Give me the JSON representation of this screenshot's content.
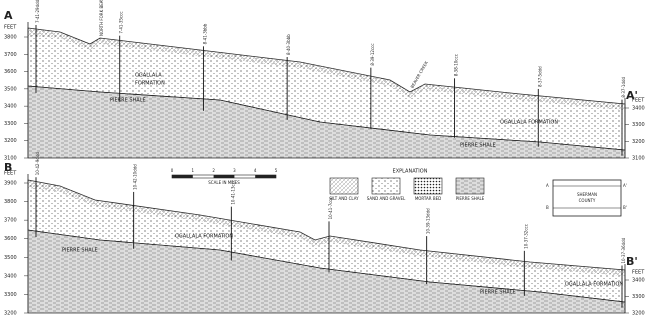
{
  "section_a": {
    "label_left": "A",
    "label_right": "A'",
    "left_axis": {
      "unit": "FEET",
      "ticks": [
        "3800",
        "3700",
        "3600",
        "3500",
        "3400",
        "3300",
        "3200",
        "3100"
      ]
    },
    "right_axis": {
      "unit": "FEET",
      "ticks": [
        "3400",
        "3300",
        "3200",
        "3100"
      ]
    },
    "wells": [
      "7-41-29ddd",
      "7-41-35ccc",
      "8-41-3bbb",
      "8-40-3bbb",
      "8-39-12ccc",
      "8-38-10ccc",
      "8-37-5ddd",
      "8-37-1ddd"
    ],
    "streams": [
      "NORTH FORK BEAVER CREEK",
      "BEAVER CREEK"
    ],
    "units": [
      "OGALLALA",
      "FORMATION",
      "PIERRE SHALE",
      "OGALLALA FORMATION",
      "PIERRE SHALE"
    ]
  },
  "section_b": {
    "label_left": "B",
    "label_right": "B'",
    "left_axis": {
      "unit": "FEET",
      "ticks": [
        "3900",
        "3800",
        "3700",
        "3600",
        "3500",
        "3400",
        "3300",
        "3200"
      ]
    },
    "right_axis": {
      "unit": "FEET",
      "ticks": [
        "3400",
        "3300",
        "3200"
      ]
    },
    "wells": [
      "10-42-9ddd",
      "10-42-10ddd",
      "10-41-13ccc",
      "10-41-7ccc",
      "10-39-13ddd",
      "10-37-32ccc",
      "10-37-36ddd"
    ],
    "units": [
      "OGALLALA FORMATION",
      "PIERRE SHALE",
      "PIERRE SHALE",
      "OGALLALA FORMATION"
    ]
  },
  "scale": {
    "ticks": [
      "0",
      "1",
      "2",
      "3",
      "4",
      "5"
    ],
    "label": "SCALE IN MILES"
  },
  "explanation": {
    "title": "EXPLANATION",
    "items": [
      "SILT AND CLAY",
      "SAND AND GRAVEL",
      "MORTAR BED",
      "PIERRE SHALE"
    ]
  },
  "key_map": {
    "county": "SHERMAN",
    "county2": "COUNTY",
    "a": "A",
    "a2": "A'",
    "b": "B",
    "b2": "B'"
  }
}
